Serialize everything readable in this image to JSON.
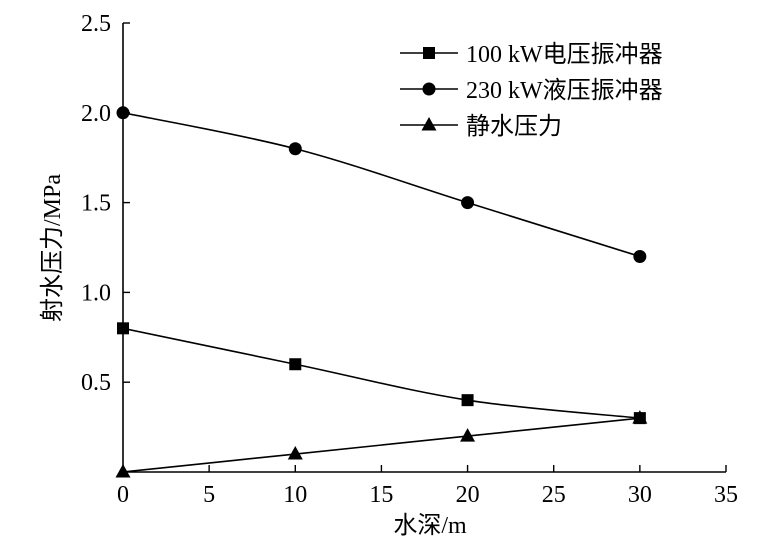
{
  "chart_data": {
    "type": "line",
    "title": "",
    "xlabel": "水深/m",
    "ylabel": "射水压力/MPa",
    "xlim": [
      0,
      35
    ],
    "ylim": [
      0,
      2.5
    ],
    "xticks": [
      0,
      5,
      10,
      15,
      20,
      25,
      30,
      35
    ],
    "yticks": [
      0.5,
      1.0,
      1.5,
      2.0,
      2.5
    ],
    "xtick_labels": [
      "0",
      "5",
      "10",
      "15",
      "20",
      "25",
      "30",
      "35"
    ],
    "ytick_labels": [
      "0.5",
      "1.0",
      "1.5",
      "2.0",
      "2.5"
    ],
    "grid": false,
    "legend_position": "top-right",
    "series": [
      {
        "name": "100 kW电压振冲器",
        "marker": "square",
        "x": [
          0,
          10,
          20,
          30
        ],
        "y": [
          0.8,
          0.6,
          0.4,
          0.3
        ]
      },
      {
        "name": "230 kW液压振冲器",
        "marker": "circle",
        "x": [
          0,
          10,
          20,
          30
        ],
        "y": [
          2.0,
          1.8,
          1.5,
          1.2
        ]
      },
      {
        "name": "静水压力",
        "marker": "triangle",
        "x": [
          0,
          10,
          20,
          30
        ],
        "y": [
          0.0,
          0.1,
          0.2,
          0.3
        ]
      }
    ]
  }
}
